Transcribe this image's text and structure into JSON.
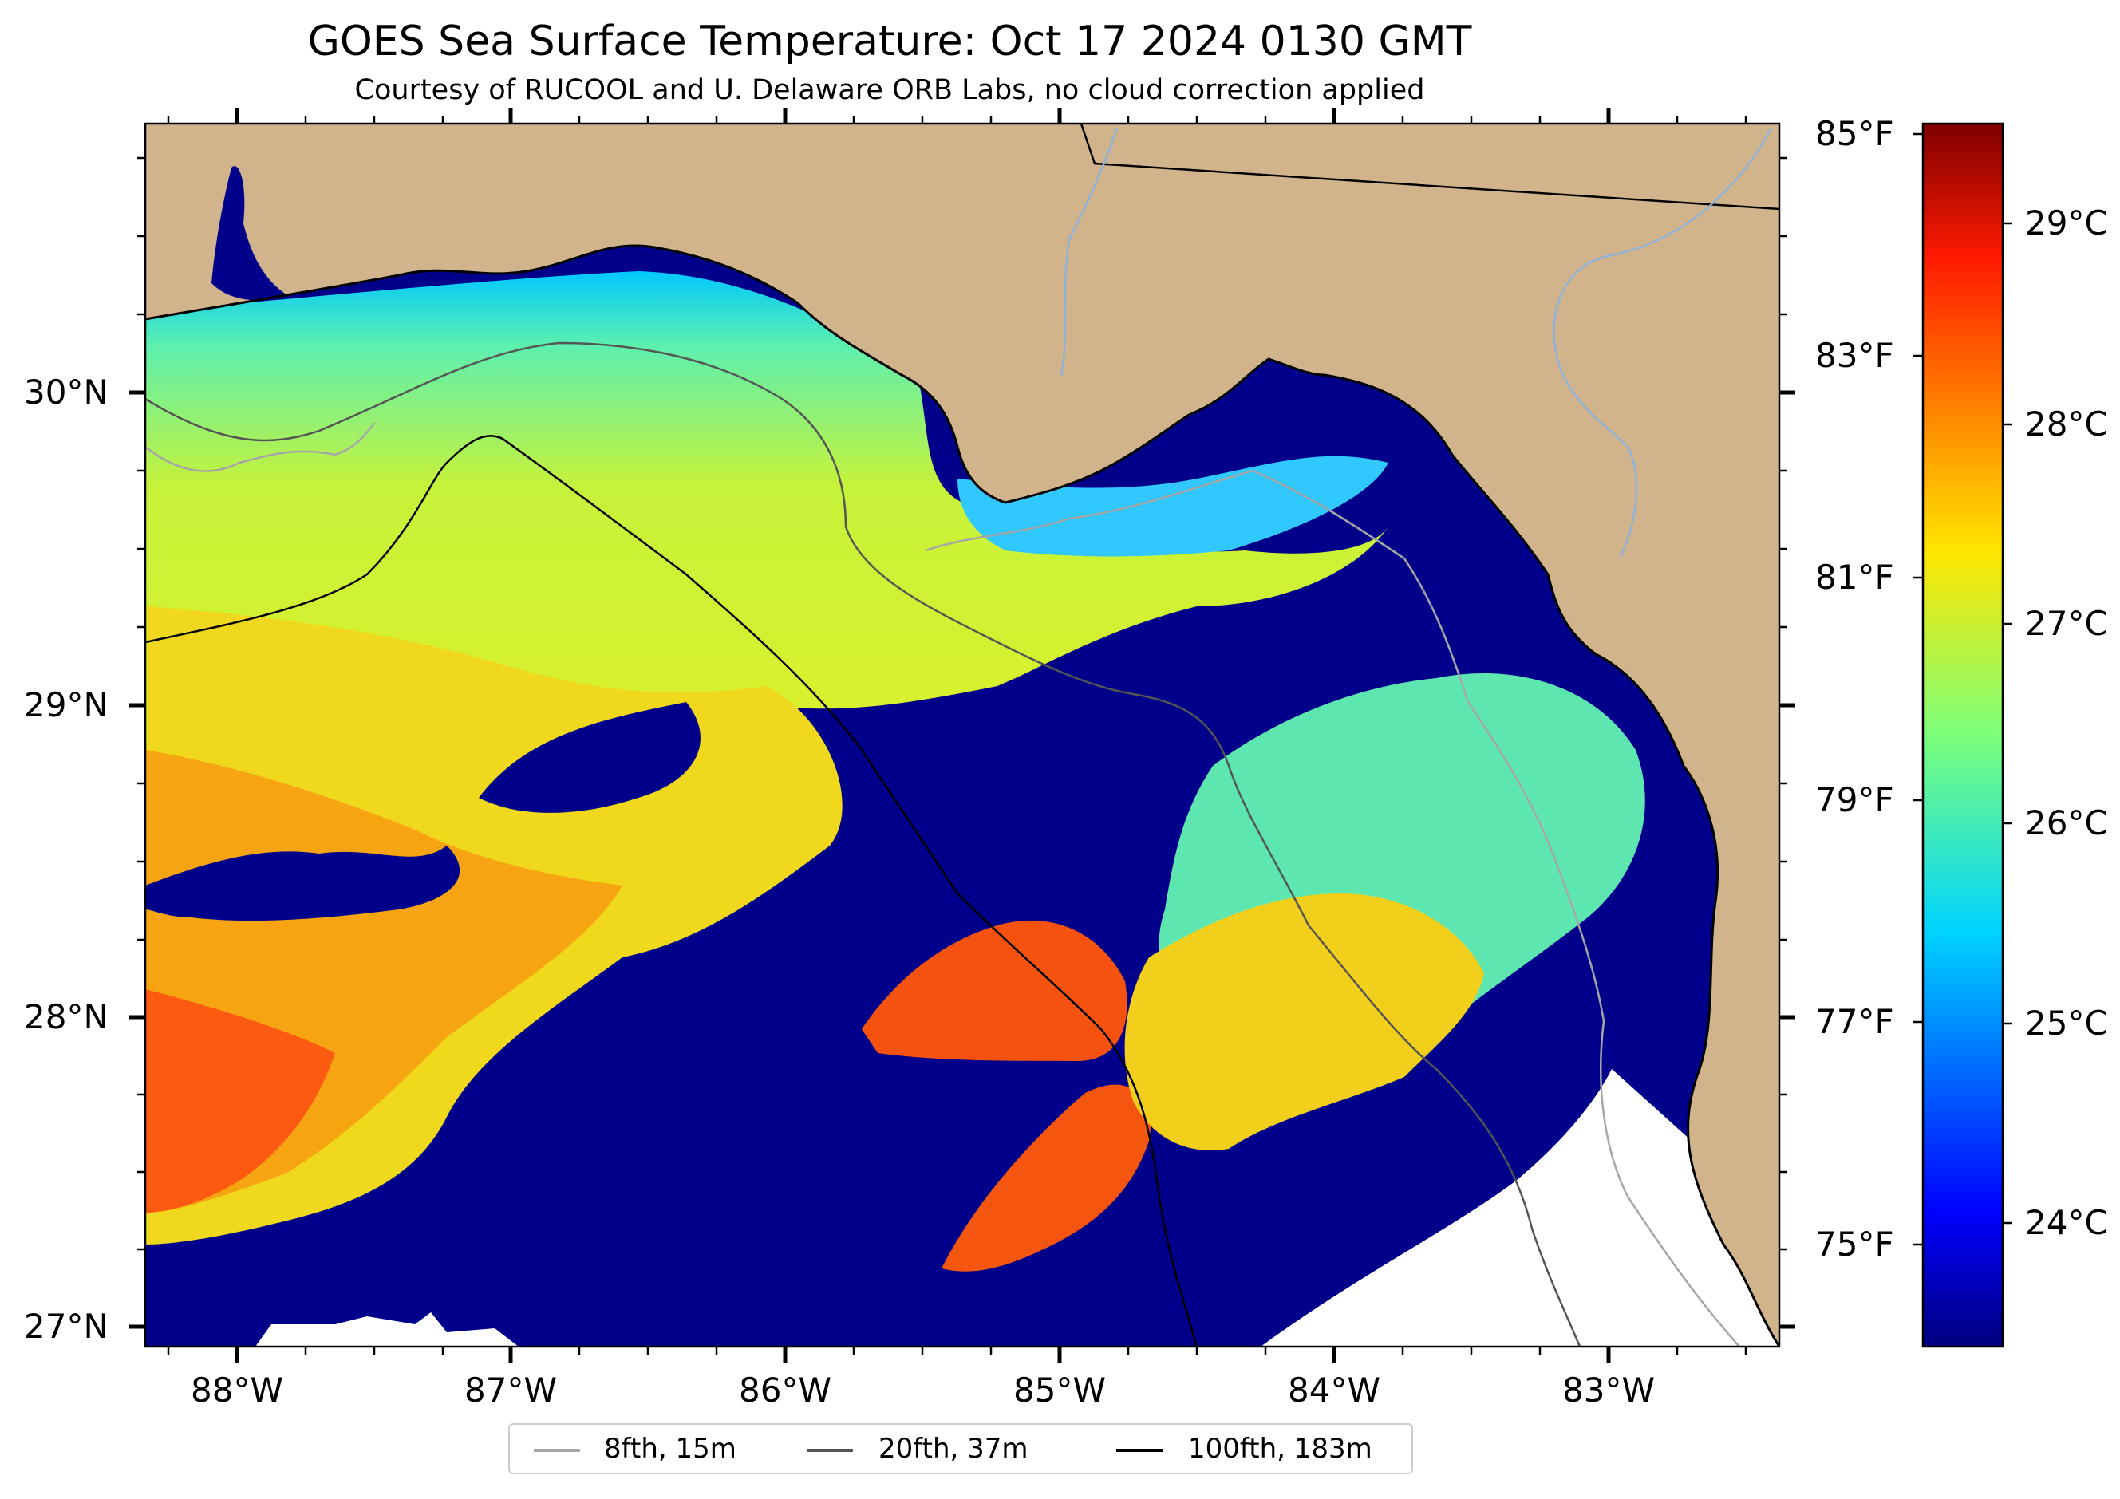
{
  "title": "GOES Sea Surface Temperature: Oct 17 2024 0130 GMT",
  "subtitle": "Courtesy of RUCOOL and U. Delaware ORB Labs, no cloud correction applied",
  "map": {
    "lat_labels": [
      "30°N",
      "29°N",
      "28°N",
      "27°N"
    ],
    "lon_labels": [
      "88°W",
      "87°W",
      "86°W",
      "85°W",
      "84°W",
      "83°W"
    ],
    "colors": {
      "land": "#d2b48c",
      "cloud_mask": "#00008b",
      "no_data": "#ffffff",
      "river": "#8fb2d9"
    }
  },
  "colorbar": {
    "fahrenheit_labels": [
      "85°F",
      "83°F",
      "81°F",
      "79°F",
      "77°F",
      "75°F"
    ],
    "celsius_labels": [
      "29°C",
      "28°C",
      "27°C",
      "26°C",
      "25°C",
      "24°C"
    ],
    "colormap": "jet"
  },
  "legend": {
    "items": [
      {
        "label": "8fth, 15m",
        "color": "#a6a6a6"
      },
      {
        "label": "20fth, 37m",
        "color": "#555555"
      },
      {
        "label": "100fth, 183m",
        "color": "#000000"
      }
    ]
  }
}
